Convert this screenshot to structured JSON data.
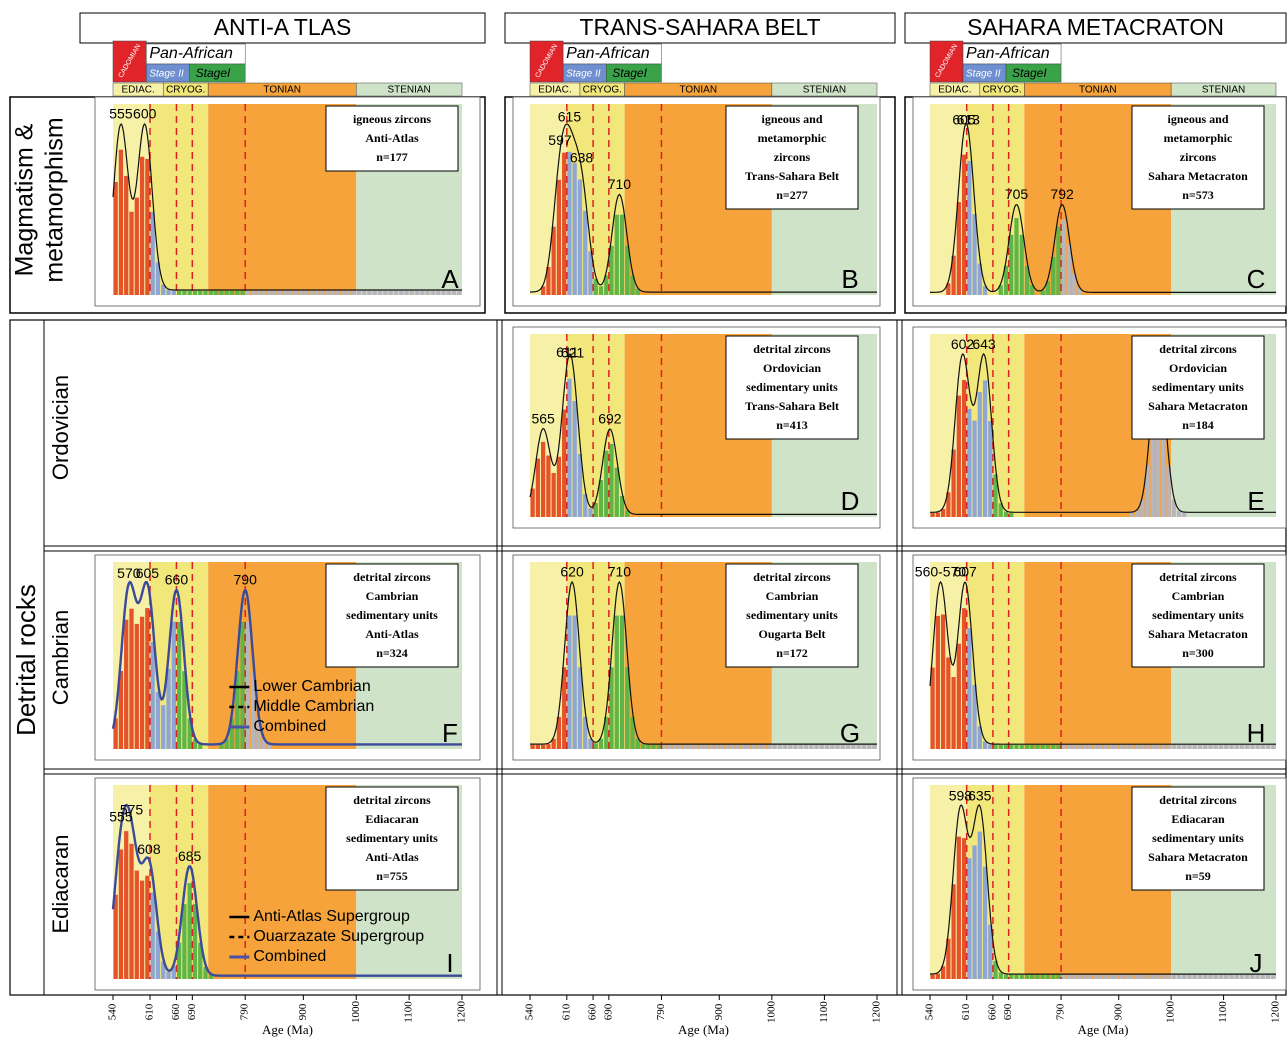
{
  "columns": [
    "ANTI-A TLAS",
    "TRANS-SAHARA BELT",
    "SAHARA METACRATON"
  ],
  "timescale": {
    "cadomian": "CADOMIAN",
    "pan_african": "Pan-African",
    "stage_2": "Stage II",
    "stage_1": "StageI",
    "periods": [
      "EDIAC.",
      "CRYOG.",
      "TONIAN",
      "STENIAN"
    ]
  },
  "magmatism": {
    "label": [
      "Magmatism &",
      "metamorphism"
    ],
    "panels": {
      "anti_atlas": {
        "letter": "A",
        "info": [
          "igneous zircons",
          "Anti-Atlas",
          "n=177"
        ],
        "peaks": [
          555,
          600
        ]
      },
      "trans_sahara": {
        "letter": "B",
        "info": [
          "igneous and",
          "metamorphic",
          "zircons",
          "Trans-Sahara Belt",
          "n=277"
        ],
        "peaks": [
          597,
          615,
          638,
          710
        ]
      },
      "metacraton": {
        "letter": "C",
        "info": [
          "igneous and",
          "metamorphic",
          "zircons",
          "Sahara Metacraton",
          "n=573"
        ],
        "peaks": [
          605,
          613,
          705,
          792
        ]
      }
    }
  },
  "detrital": {
    "label": "Detrital rocks",
    "rows": [
      {
        "label": "Ordovician",
        "panels": {
          "trans_sahara": {
            "letter": "D",
            "info": [
              "detrital zircons",
              "Ordovician",
              "sedimentary units",
              "Trans-Sahara Belt",
              "n=413"
            ],
            "peaks": [
              565,
              611,
              621,
              692
            ]
          },
          "metacraton": {
            "letter": "E",
            "info": [
              "detrital zircons",
              "Ordovician",
              "sedimentary units",
              "Sahara Metacraton",
              "n=184"
            ],
            "peaks": [
              602,
              643,
              975
            ]
          }
        }
      },
      {
        "label": "Cambrian",
        "panels": {
          "anti_atlas": {
            "letter": "F",
            "info": [
              "detrital zircons",
              "Cambrian",
              "sedimentary units",
              "Anti-Atlas",
              "n=324"
            ],
            "peaks": [
              570,
              605,
              660,
              790
            ],
            "legend": [
              "Lower Cambrian",
              "Middle Cambrian",
              "Combined"
            ]
          },
          "trans_sahara": {
            "letter": "G",
            "info": [
              "detrital zircons",
              "Cambrian",
              "sedimentary units",
              "Ougarta Belt",
              "n=172"
            ],
            "peaks": [
              620,
              710
            ]
          },
          "metacraton": {
            "letter": "H",
            "info": [
              "detrital zircons",
              "Cambrian",
              "sedimentary units",
              "Sahara Metacraton",
              "n=300"
            ],
            "peaks": [
              "560-570",
              607
            ]
          }
        }
      },
      {
        "label": "Ediacaran",
        "panels": {
          "anti_atlas": {
            "letter": "I",
            "info": [
              "detrital zircons",
              "Ediacaran",
              "sedimentary units",
              "Anti-Atlas",
              "n=755"
            ],
            "peaks": [
              555,
              575,
              608,
              685
            ],
            "legend": [
              "Anti-Atlas Supergroup",
              "Ouarzazate Supergroup",
              "Combined"
            ]
          },
          "metacraton": {
            "letter": "J",
            "info": [
              "detrital zircons",
              "Ediacaran",
              "sedimentary units",
              "Sahara Metacraton",
              "n=59"
            ],
            "peaks": [
              598,
              635
            ]
          }
        }
      }
    ]
  },
  "x_axis": {
    "label": "Age (Ma)",
    "ticks": [
      540,
      610,
      660,
      690,
      790,
      900,
      1000,
      1100,
      1200
    ],
    "lim": [
      540,
      1200
    ],
    "ref_lines": [
      610,
      660,
      690,
      790
    ]
  }
}
